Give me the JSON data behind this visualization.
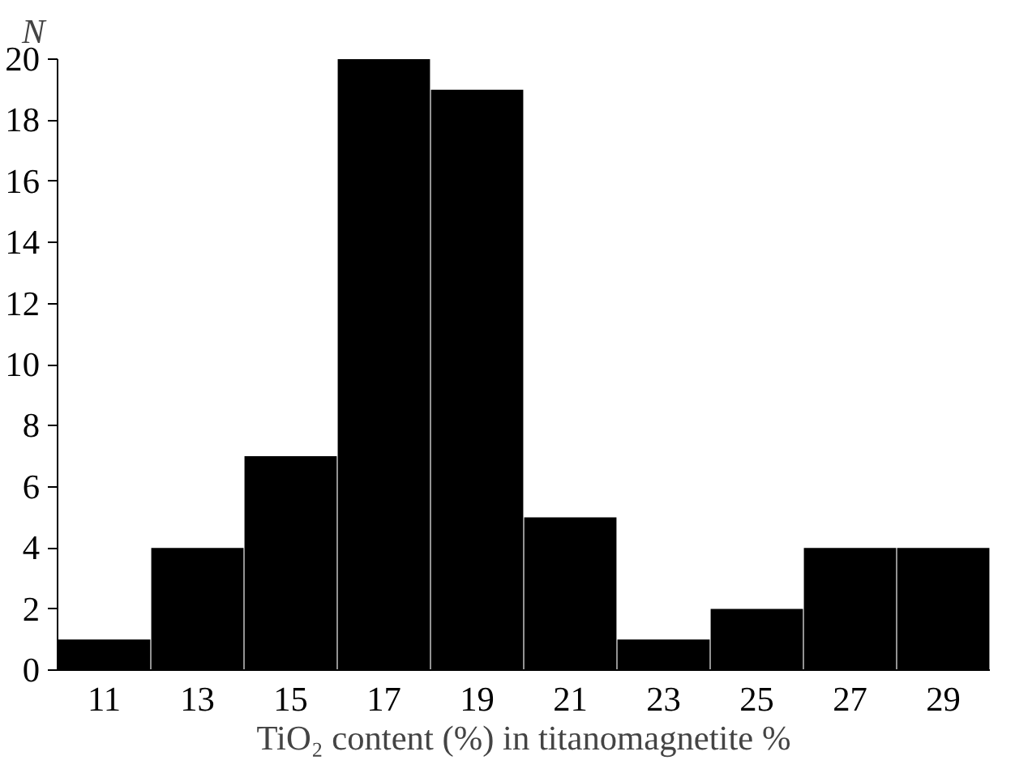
{
  "chart_data": {
    "type": "bar",
    "ylabel": "N",
    "xlabel": "TiO₂ content (%) in titanomagnetite %",
    "categories": [
      "11",
      "13",
      "15",
      "17",
      "19",
      "21",
      "23",
      "25",
      "27",
      "29"
    ],
    "values": [
      1,
      4,
      7,
      20,
      19,
      5,
      1,
      2,
      4,
      4
    ],
    "color": "#000000",
    "ylim": [
      0,
      20
    ],
    "yticks": [
      0,
      2,
      4,
      6,
      8,
      10,
      12,
      14,
      16,
      18,
      20
    ],
    "grid": false
  }
}
